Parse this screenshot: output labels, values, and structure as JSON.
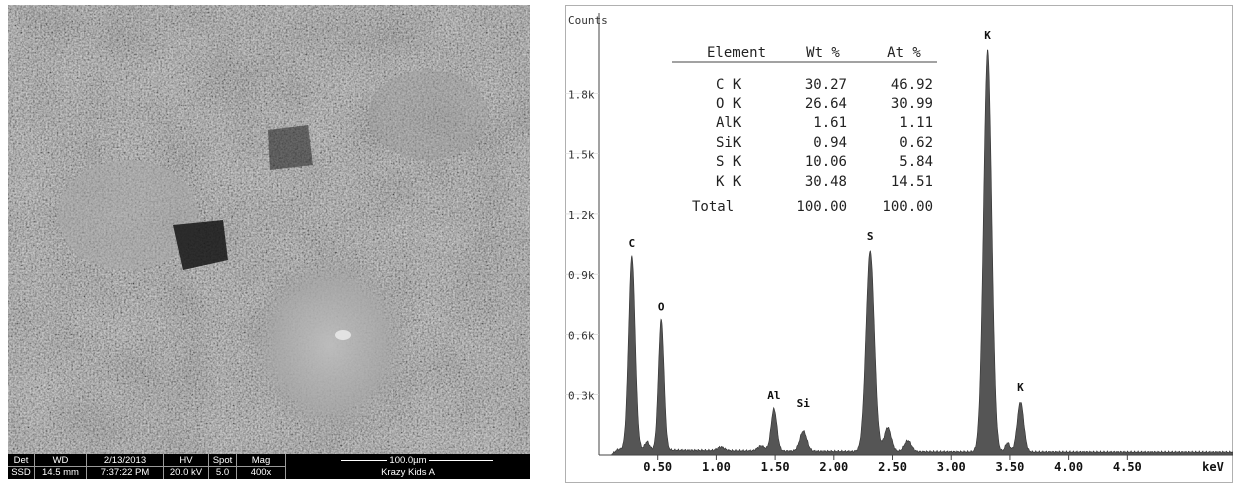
{
  "sem": {
    "info_bar": {
      "det": {
        "label": "Det",
        "value": "SSD"
      },
      "wd": {
        "label": "WD",
        "value": "14.5 mm"
      },
      "date": {
        "label": "2/13/2013",
        "value": "7:37:22 PM"
      },
      "hv": {
        "label": "HV",
        "value": "20.0 kV"
      },
      "spot": {
        "label": "Spot",
        "value": "5.0"
      },
      "mag": {
        "label": "Mag",
        "value": "400x"
      },
      "scale_bar": "100.0µm",
      "sample_name": "Krazy Kids A"
    }
  },
  "chart_data": {
    "type": "line",
    "y_axis_title": "Counts",
    "xlabel": "keV",
    "xlim": [
      0,
      5.4
    ],
    "ylim": [
      0,
      2200
    ],
    "x_tick_labels": [
      "0.50",
      "1.00",
      "1.50",
      "2.00",
      "2.50",
      "3.00",
      "3.50",
      "4.00",
      "4.50"
    ],
    "y_tick_labels": [
      "0.3k",
      "0.6k",
      "0.9k",
      "1.2k",
      "1.5k",
      "1.8k"
    ],
    "peaks": [
      {
        "label": "C",
        "x": 0.28,
        "y": 965
      },
      {
        "label": "O",
        "x": 0.53,
        "y": 650
      },
      {
        "label": "Al",
        "x": 1.49,
        "y": 210
      },
      {
        "label": "Si",
        "x": 1.74,
        "y": 100
      },
      {
        "label": "S",
        "x": 2.31,
        "y": 1000
      },
      {
        "label": "K",
        "x": 3.31,
        "y": 2000
      },
      {
        "label": "K",
        "x": 3.59,
        "y": 250
      }
    ],
    "composition_table": {
      "headers": [
        "Element",
        "Wt %",
        "At %"
      ],
      "rows": [
        [
          "C K",
          "30.27",
          "46.92"
        ],
        [
          "O K",
          "26.64",
          "30.99"
        ],
        [
          "AlK",
          "1.61",
          "1.11"
        ],
        [
          "SiK",
          "0.94",
          "0.62"
        ],
        [
          "S K",
          "10.06",
          "5.84"
        ],
        [
          "K K",
          "30.48",
          "14.51"
        ],
        [
          "Total",
          "100.00",
          "100.00"
        ]
      ]
    },
    "fill_color": "#555555"
  }
}
